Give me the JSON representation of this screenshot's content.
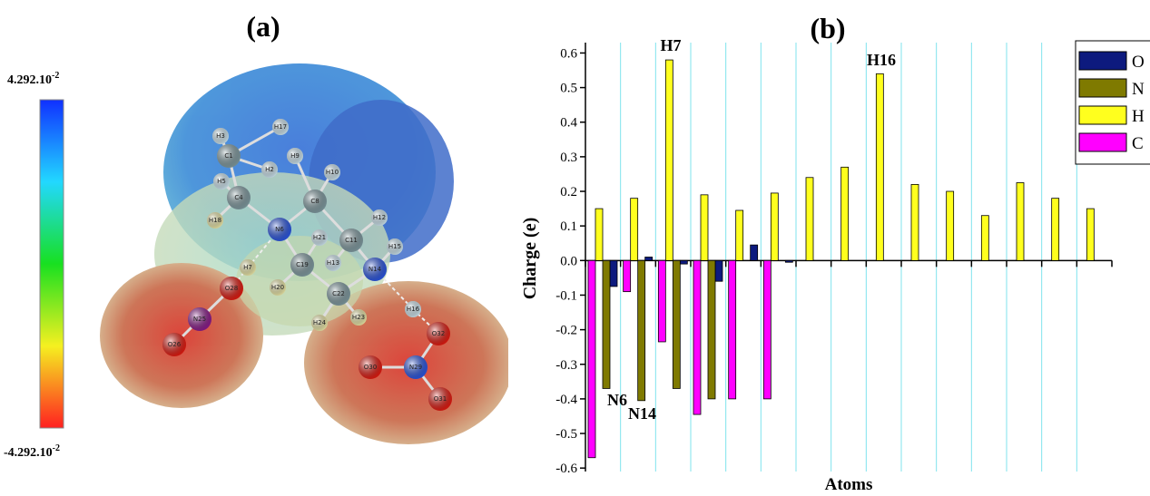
{
  "panel_a": {
    "title": "(a)",
    "scale_max": {
      "base": "4.292.10",
      "sup": "-2"
    },
    "scale_min": {
      "base": "-4.292.10",
      "sup": "-2"
    },
    "atoms": [
      "H17",
      "H3",
      "C1",
      "H2",
      "H5",
      "C4",
      "H9",
      "H10",
      "C8",
      "H18",
      "N6",
      "H12",
      "H21",
      "C11",
      "H15",
      "H7",
      "C19",
      "H13",
      "N14",
      "O28",
      "H20",
      "N25",
      "C22",
      "O26",
      "H24",
      "H23",
      "H16",
      "O32",
      "O30",
      "N29",
      "O31"
    ]
  },
  "chart_data": {
    "type": "bar",
    "title": "(b)",
    "x_label": "Atoms",
    "y_label": "Charge (e)",
    "categories": [
      null,
      null,
      null,
      null,
      null,
      null,
      null,
      null,
      null,
      null,
      null,
      null,
      null,
      null,
      null
    ],
    "series": [
      {
        "name": "O",
        "color": "#0d1a7e",
        "values": [
          -0.075,
          0.01,
          -0.01,
          -0.06,
          0.045,
          -0.005,
          null,
          null,
          null,
          null,
          null,
          null,
          null,
          null,
          null
        ]
      },
      {
        "name": "N",
        "color": "#7f7a00",
        "values": [
          -0.37,
          -0.405,
          -0.37,
          -0.4,
          null,
          null,
          null,
          null,
          null,
          null,
          null,
          null,
          null,
          null,
          null
        ]
      },
      {
        "name": "H",
        "color": "#ffff1e",
        "values": [
          0.15,
          0.18,
          0.58,
          0.19,
          0.145,
          0.195,
          0.24,
          0.27,
          0.54,
          0.22,
          0.2,
          0.13,
          0.225,
          0.18,
          0.15
        ]
      },
      {
        "name": "C",
        "color": "#ff00ff",
        "values": [
          -0.57,
          -0.09,
          -0.235,
          -0.445,
          -0.4,
          -0.4,
          null,
          null,
          null,
          null,
          null,
          null,
          null,
          null,
          null
        ]
      }
    ],
    "annotations": [
      "N6",
      "N14",
      "H7",
      "H16"
    ],
    "ylim": [
      -0.61,
      0.63
    ],
    "yticks": [
      -0.6,
      -0.5,
      -0.4,
      -0.3,
      -0.2,
      -0.1,
      {
        "value": 0,
        "label": "0.0"
      },
      0.1,
      0.2,
      0.3,
      0.4,
      0.5,
      0.6
    ],
    "grid": true,
    "grid_color": "#7fe3ee",
    "legend_position": "top-right"
  }
}
